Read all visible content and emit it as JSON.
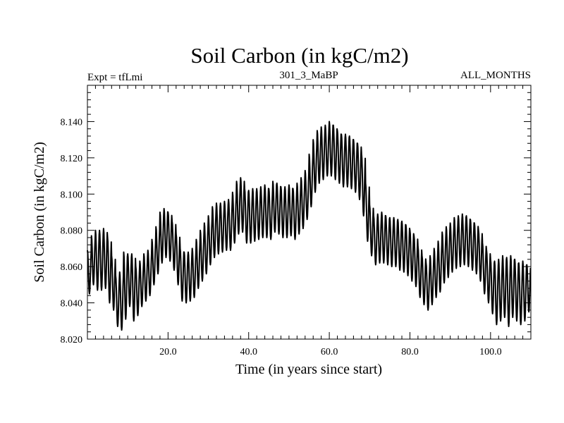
{
  "chart_data": {
    "type": "line",
    "title": "Soil Carbon (in kgC/m2)",
    "subtitle_left": "Expt = tfLmi",
    "subtitle_center": "301_3_MaBP",
    "subtitle_right": "ALL_MONTHS",
    "xlabel": "Time (in years since start)",
    "ylabel": "Soil Carbon (in kgC/m2)",
    "xlim": [
      0,
      110
    ],
    "ylim": [
      8.02,
      8.16
    ],
    "x_ticks": [
      20,
      40,
      60,
      80,
      100
    ],
    "x_tick_labels": [
      "20.0",
      "40.0",
      "60.0",
      "80.0",
      "100.0"
    ],
    "y_ticks": [
      8.02,
      8.04,
      8.06,
      8.08,
      8.1,
      8.12,
      8.14
    ],
    "y_tick_labels": [
      "8.020",
      "8.040",
      "8.060",
      "8.080",
      "8.100",
      "8.120",
      "8.140"
    ],
    "series": [
      {
        "name": "Soil Carbon",
        "sampling": "monthly, one annual cycle per year",
        "annual_max": [
          8.069,
          8.077,
          8.08,
          8.08,
          8.081,
          8.076,
          8.066,
          8.055,
          8.057,
          8.068,
          8.067,
          8.067,
          8.06,
          8.063,
          8.067,
          8.069,
          8.075,
          8.082,
          8.09,
          8.092,
          8.09,
          8.085,
          8.078,
          8.07,
          8.068,
          8.068,
          8.07,
          8.075,
          8.08,
          8.084,
          8.088,
          8.093,
          8.095,
          8.095,
          8.096,
          8.097,
          8.101,
          8.107,
          8.109,
          8.103,
          8.102,
          8.103,
          8.103,
          8.104,
          8.105,
          8.103,
          8.107,
          8.106,
          8.104,
          8.104,
          8.105,
          8.103,
          8.106,
          8.109,
          8.113,
          8.122,
          8.13,
          8.135,
          8.137,
          8.138,
          8.14,
          8.138,
          8.135,
          8.133,
          8.133,
          8.132,
          8.13,
          8.128,
          8.122,
          8.106,
          8.094,
          8.088,
          8.089,
          8.09,
          8.088,
          8.087,
          8.087,
          8.086,
          8.085,
          8.083,
          8.08,
          8.077,
          8.071,
          8.066,
          8.062,
          8.066,
          8.07,
          8.074,
          8.079,
          8.082,
          8.084,
          8.087,
          8.088,
          8.089,
          8.088,
          8.086,
          8.084,
          8.08,
          8.073,
          8.069,
          8.064,
          8.063,
          8.064,
          8.066,
          8.065,
          8.066,
          8.064,
          8.062,
          8.063,
          8.061
        ],
        "annual_min": [
          8.045,
          8.05,
          8.047,
          8.047,
          8.048,
          8.04,
          8.036,
          8.027,
          8.025,
          8.031,
          8.038,
          8.03,
          8.033,
          8.038,
          8.041,
          8.044,
          8.05,
          8.056,
          8.062,
          8.065,
          8.063,
          8.058,
          8.05,
          8.041,
          8.04,
          8.041,
          8.043,
          8.048,
          8.052,
          8.056,
          8.061,
          8.065,
          8.067,
          8.068,
          8.069,
          8.069,
          8.073,
          8.078,
          8.079,
          8.073,
          8.073,
          8.074,
          8.075,
          8.076,
          8.076,
          8.075,
          8.079,
          8.078,
          8.076,
          8.076,
          8.077,
          8.075,
          8.078,
          8.081,
          8.086,
          8.093,
          8.101,
          8.106,
          8.108,
          8.11,
          8.11,
          8.108,
          8.106,
          8.104,
          8.104,
          8.103,
          8.101,
          8.097,
          8.088,
          8.074,
          8.066,
          8.061,
          8.062,
          8.062,
          8.061,
          8.06,
          8.06,
          8.058,
          8.057,
          8.055,
          8.052,
          8.049,
          8.043,
          8.039,
          8.036,
          8.039,
          8.043,
          8.046,
          8.051,
          8.054,
          8.057,
          8.059,
          8.06,
          8.061,
          8.06,
          8.058,
          8.056,
          8.052,
          8.045,
          8.04,
          8.034,
          8.028,
          8.03,
          8.032,
          8.027,
          8.032,
          8.03,
          8.028,
          8.03,
          8.035
        ]
      }
    ]
  }
}
